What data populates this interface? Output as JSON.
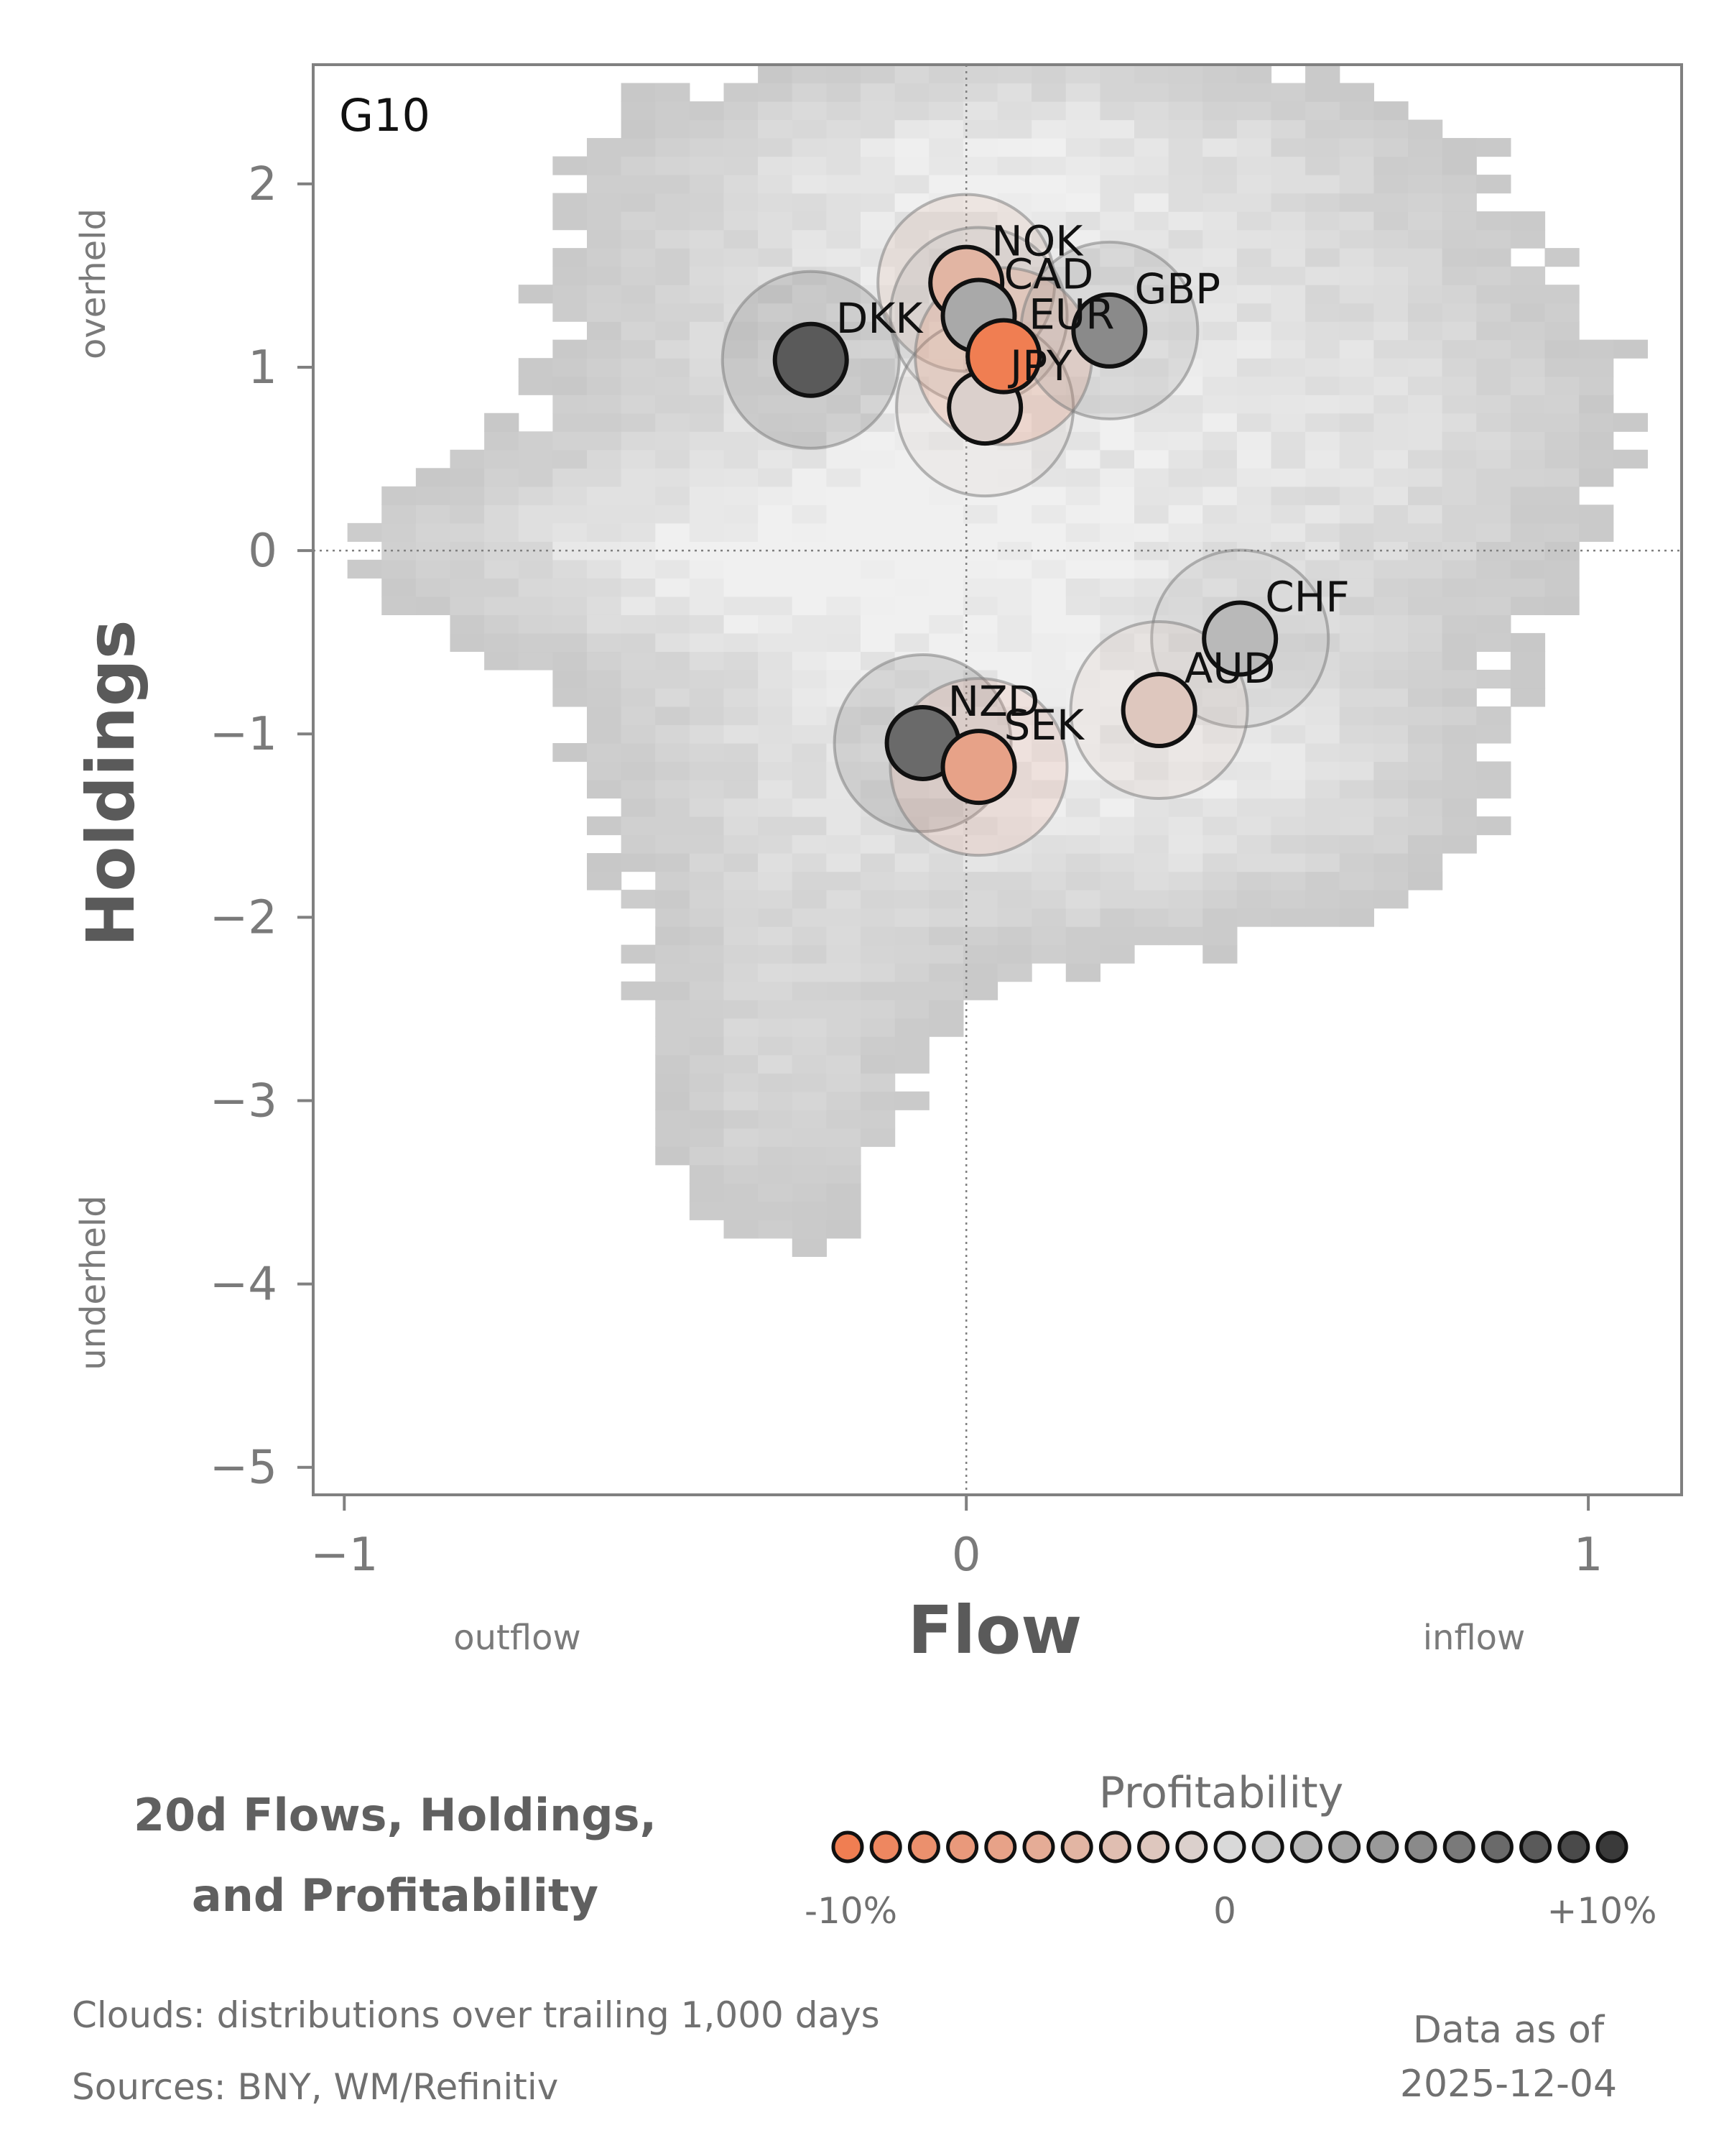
{
  "chart_data": {
    "type": "scatter",
    "panel_label": "G10",
    "xlabel": "Flow",
    "ylabel": "Holdings",
    "x_side_labels": {
      "left": "outflow",
      "right": "inflow"
    },
    "y_side_labels": {
      "top": "overheld",
      "bottom": "underheld"
    },
    "xlim": [
      -1.05,
      1.15
    ],
    "ylim": [
      -5.15,
      2.65
    ],
    "x_ticks": [
      -1,
      0,
      1
    ],
    "x_tick_labels": [
      "−1",
      "0",
      "1"
    ],
    "y_ticks": [
      2,
      1,
      0,
      -1,
      -2,
      -3,
      -4,
      -5
    ],
    "y_tick_labels": [
      "2",
      "1",
      "0",
      "−1",
      "−2",
      "−3",
      "−4",
      "−5"
    ],
    "reference_lines": {
      "x": 0,
      "y": 0
    },
    "points": [
      {
        "label": "DKK",
        "flow": -0.25,
        "holdings": 1.04,
        "profitability": 8
      },
      {
        "label": "NOK",
        "flow": 0.0,
        "holdings": 1.46,
        "profitability": -4
      },
      {
        "label": "CAD",
        "flow": 0.02,
        "holdings": 1.28,
        "profitability": 3
      },
      {
        "label": "JPY",
        "flow": 0.03,
        "holdings": 0.78,
        "profitability": -1
      },
      {
        "label": "EUR",
        "flow": 0.06,
        "holdings": 1.06,
        "profitability": -10
      },
      {
        "label": "GBP",
        "flow": 0.23,
        "holdings": 1.2,
        "profitability": 5
      },
      {
        "label": "CHF",
        "flow": 0.44,
        "holdings": -0.48,
        "profitability": 2
      },
      {
        "label": "AUD",
        "flow": 0.31,
        "holdings": -0.87,
        "profitability": -2
      },
      {
        "label": "NZD",
        "flow": -0.07,
        "holdings": -1.05,
        "profitability": 7
      },
      {
        "label": "SEK",
        "flow": 0.02,
        "holdings": -1.18,
        "profitability": -6
      }
    ],
    "cloud_description": "distributions over trailing 1,000 days"
  },
  "footer": {
    "title_line1": "20d Flows, Holdings,",
    "title_line2": "and Profitability",
    "legend_title": "Profitability",
    "legend_ticks": [
      "-10%",
      "0",
      "+10%"
    ],
    "legend_steps": 21,
    "clouds_note": "Clouds:  distributions over trailing 1,000 days",
    "sources_note": "Sources:  BNY, WM/Refinitiv",
    "asof_line1": "Data as of",
    "asof_line2": "2025-12-04"
  },
  "colors": {
    "negative": "#f07e52",
    "neutral": "#d9d9d9",
    "positive": "#3a3a3a",
    "axis": "#808080",
    "cloud": "#c8c8c8"
  }
}
